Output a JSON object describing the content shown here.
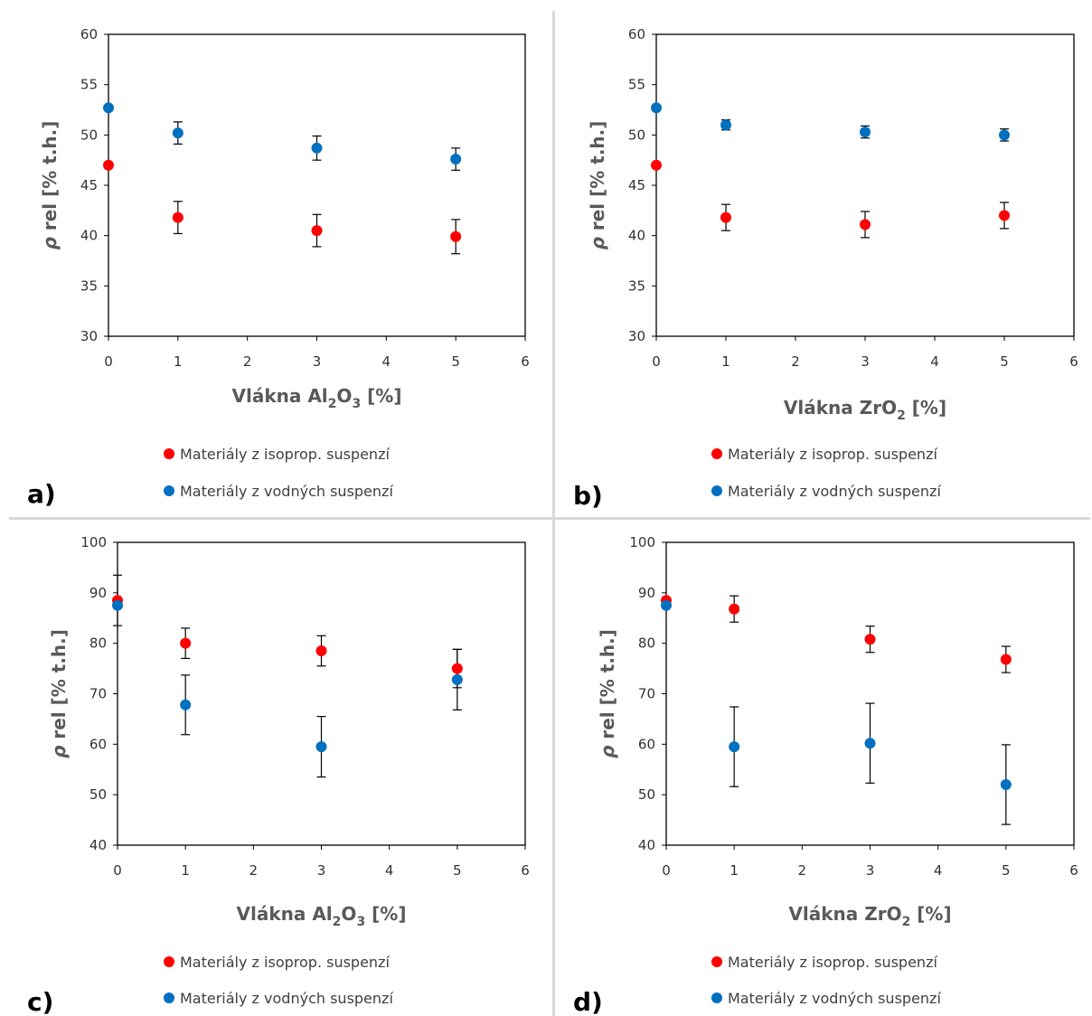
{
  "colors": {
    "isoprop": "#ff0000",
    "vodne": "#0070c0",
    "errorbar": "#000000",
    "axes": "#000000"
  },
  "chart_data": [
    {
      "type": "scatter",
      "panel_label": "a)",
      "xlabel": {
        "main": "Vlákna Al",
        "sub1": "2",
        "mid": "O",
        "sub2": "3",
        "tail": " [%]"
      },
      "ylabel": {
        "symbol": "ρ",
        "rest": " rel [% t.h.]"
      },
      "xlim": [
        0,
        6
      ],
      "ylim": [
        30,
        60
      ],
      "xticks": [
        0,
        1,
        2,
        3,
        4,
        5,
        6
      ],
      "yticks": [
        30,
        35,
        40,
        45,
        50,
        55,
        60
      ],
      "legend_position": "bottom",
      "series": [
        {
          "name": "Materiály z isoprop. suspenzí",
          "color": "#ff0000",
          "points": [
            {
              "x": 0,
              "y": 47.0,
              "err": 0
            },
            {
              "x": 1,
              "y": 41.8,
              "err": 1.6
            },
            {
              "x": 3,
              "y": 40.5,
              "err": 1.6
            },
            {
              "x": 5,
              "y": 39.9,
              "err": 1.7
            }
          ]
        },
        {
          "name": "Materiály z vodných suspenzí",
          "color": "#0070c0",
          "points": [
            {
              "x": 0,
              "y": 52.7,
              "err": 0
            },
            {
              "x": 1,
              "y": 50.2,
              "err": 1.1
            },
            {
              "x": 3,
              "y": 48.7,
              "err": 1.2
            },
            {
              "x": 5,
              "y": 47.6,
              "err": 1.1
            }
          ]
        }
      ]
    },
    {
      "type": "scatter",
      "panel_label": "b)",
      "xlabel": {
        "main": "Vlákna ZrO",
        "sub1": "2",
        "mid": "",
        "sub2": "",
        "tail": " [%]"
      },
      "ylabel": {
        "symbol": "ρ",
        "rest": " rel [% t.h.]"
      },
      "xlim": [
        0,
        6
      ],
      "ylim": [
        30,
        60
      ],
      "xticks": [
        0,
        1,
        2,
        3,
        4,
        5,
        6
      ],
      "yticks": [
        30,
        35,
        40,
        45,
        50,
        55,
        60
      ],
      "legend_position": "bottom",
      "series": [
        {
          "name": "Materiály z isoprop. suspenzí",
          "color": "#ff0000",
          "points": [
            {
              "x": 0,
              "y": 47.0,
              "err": 0
            },
            {
              "x": 1,
              "y": 41.8,
              "err": 1.3
            },
            {
              "x": 3,
              "y": 41.1,
              "err": 1.3
            },
            {
              "x": 5,
              "y": 42.0,
              "err": 1.3
            }
          ]
        },
        {
          "name": "Materiály z vodných suspenzí",
          "color": "#0070c0",
          "points": [
            {
              "x": 0,
              "y": 52.7,
              "err": 0
            },
            {
              "x": 1,
              "y": 51.0,
              "err": 0.5
            },
            {
              "x": 3,
              "y": 50.3,
              "err": 0.6
            },
            {
              "x": 5,
              "y": 50.0,
              "err": 0.6
            }
          ]
        }
      ]
    },
    {
      "type": "scatter",
      "panel_label": "c)",
      "xlabel": {
        "main": "Vlákna Al",
        "sub1": "2",
        "mid": "O",
        "sub2": "3",
        "tail": " [%]"
      },
      "ylabel": {
        "symbol": "ρ",
        "rest": " rel [% t.h.]"
      },
      "xlim": [
        0,
        6
      ],
      "ylim": [
        40,
        100
      ],
      "xticks": [
        0,
        1,
        2,
        3,
        4,
        5,
        6
      ],
      "yticks": [
        40,
        50,
        60,
        70,
        80,
        90,
        100
      ],
      "legend_position": "bottom",
      "series": [
        {
          "name": "Materiály z isoprop. suspenzí",
          "color": "#ff0000",
          "points": [
            {
              "x": 0,
              "y": 88.5,
              "err": 5.0
            },
            {
              "x": 1,
              "y": 80.0,
              "err": 3.0
            },
            {
              "x": 3,
              "y": 78.5,
              "err": 3.0
            },
            {
              "x": 5,
              "y": 75.0,
              "err": 3.8
            }
          ]
        },
        {
          "name": "Materiály z vodných suspenzí",
          "color": "#0070c0",
          "points": [
            {
              "x": 0,
              "y": 87.5,
              "err": 0
            },
            {
              "x": 1,
              "y": 67.8,
              "err": 5.9
            },
            {
              "x": 3,
              "y": 59.5,
              "err": 6.0
            },
            {
              "x": 5,
              "y": 72.8,
              "err": 6.0
            }
          ]
        }
      ]
    },
    {
      "type": "scatter",
      "panel_label": "d)",
      "xlabel": {
        "main": "Vlákna ZrO",
        "sub1": "2",
        "mid": "",
        "sub2": "",
        "tail": " [%]"
      },
      "ylabel": {
        "symbol": "ρ",
        "rest": " rel [% t.h.]"
      },
      "xlim": [
        0,
        6
      ],
      "ylim": [
        40,
        100
      ],
      "xticks": [
        0,
        1,
        2,
        3,
        4,
        5,
        6
      ],
      "yticks": [
        40,
        50,
        60,
        70,
        80,
        90,
        100
      ],
      "legend_position": "bottom",
      "series": [
        {
          "name": "Materiály z isoprop. suspenzí",
          "color": "#ff0000",
          "points": [
            {
              "x": 0,
              "y": 88.5,
              "err": 0
            },
            {
              "x": 1,
              "y": 86.8,
              "err": 2.6
            },
            {
              "x": 3,
              "y": 80.8,
              "err": 2.6
            },
            {
              "x": 5,
              "y": 76.8,
              "err": 2.6
            }
          ]
        },
        {
          "name": "Materiály z vodných suspenzí",
          "color": "#0070c0",
          "points": [
            {
              "x": 0,
              "y": 87.5,
              "err": 0
            },
            {
              "x": 1,
              "y": 59.5,
              "err": 7.9
            },
            {
              "x": 3,
              "y": 60.2,
              "err": 7.9
            },
            {
              "x": 5,
              "y": 52.0,
              "err": 7.9
            }
          ]
        }
      ]
    }
  ]
}
